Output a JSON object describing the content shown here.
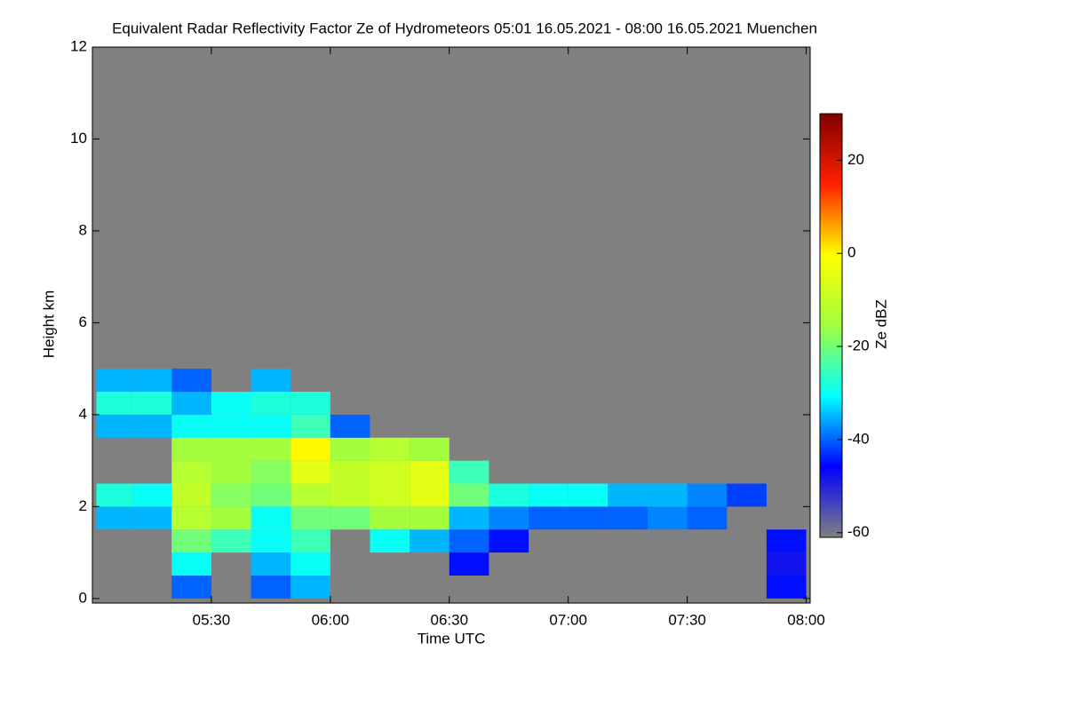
{
  "chart_data": {
    "type": "heatmap",
    "title": "Equivalent Radar Reflectivity Factor Ze of Hydrometeors   05:01 16.05.2021 - 08:00 16.05.2021 Muenchen",
    "xlabel": "Time UTC",
    "ylabel": "Height km",
    "colorbar_label": "Ze dBZ",
    "xlim": [
      "05:00",
      "08:01"
    ],
    "xticks": [
      "05:30",
      "06:00",
      "06:30",
      "07:00",
      "07:30",
      "08:00"
    ],
    "ylim": [
      -0.1,
      12
    ],
    "yticks": [
      0,
      2,
      4,
      6,
      8,
      10,
      12
    ],
    "zlim": [
      -61,
      30
    ],
    "zticks": [
      -60,
      -40,
      -20,
      0,
      20
    ],
    "background": "#808080",
    "colormap": [
      "#808080",
      "#0000ff",
      "#00ffff",
      "#a0ff40",
      "#ffff00",
      "#ff2000",
      "#800000"
    ],
    "x_bins": [
      "05:01",
      "05:10",
      "05:20",
      "05:30",
      "05:40",
      "05:50",
      "06:00",
      "06:10",
      "06:20",
      "06:30",
      "06:40",
      "06:50",
      "07:00",
      "07:10",
      "07:20",
      "07:30",
      "07:40",
      "07:50",
      "08:00"
    ],
    "y_bins": [
      0,
      0.5,
      1,
      1.5,
      2,
      2.5,
      3,
      3.5,
      4,
      4.5,
      5
    ],
    "values": [
      [
        null,
        null,
        null,
        -35,
        -28,
        null,
        null,
        -35,
        -28,
        -35
      ],
      [
        null,
        null,
        null,
        -35,
        -30,
        null,
        null,
        -35,
        -28,
        -35
      ],
      [
        -40,
        -30,
        -20,
        -12,
        -10,
        -12,
        -15,
        -30,
        -35,
        -40
      ],
      [
        null,
        null,
        -25,
        -15,
        -18,
        -15,
        -15,
        -30,
        -30,
        null
      ],
      [
        -40,
        -35,
        -30,
        -30,
        -20,
        -18,
        -15,
        -30,
        -28,
        -35
      ],
      [
        -35,
        -30,
        -25,
        -20,
        -12,
        -5,
        0,
        -25,
        -28,
        null
      ],
      [
        null,
        null,
        null,
        -20,
        -10,
        -10,
        -15,
        -40,
        null,
        null
      ],
      [
        null,
        null,
        -30,
        -15,
        -8,
        -8,
        -12,
        null,
        null,
        null
      ],
      [
        null,
        null,
        -35,
        -15,
        -5,
        -5,
        -15,
        null,
        null,
        null
      ],
      [
        null,
        -45,
        -40,
        -35,
        -20,
        -25,
        null,
        null,
        null,
        null
      ],
      [
        null,
        null,
        -45,
        -38,
        -28,
        null,
        null,
        null,
        null,
        null
      ],
      [
        null,
        null,
        null,
        -40,
        -30,
        null,
        null,
        null,
        null,
        null
      ],
      [
        null,
        null,
        null,
        -40,
        -30,
        null,
        null,
        null,
        null,
        null
      ],
      [
        null,
        null,
        null,
        -40,
        -35,
        null,
        null,
        null,
        null,
        null
      ],
      [
        null,
        null,
        null,
        -38,
        -35,
        null,
        null,
        null,
        null,
        null
      ],
      [
        null,
        null,
        null,
        -40,
        -38,
        null,
        null,
        null,
        null,
        null
      ],
      [
        null,
        null,
        null,
        null,
        -42,
        null,
        null,
        null,
        null,
        null
      ],
      [
        -45,
        -48,
        -45,
        null,
        null,
        null,
        null,
        null,
        null,
        null
      ]
    ]
  }
}
